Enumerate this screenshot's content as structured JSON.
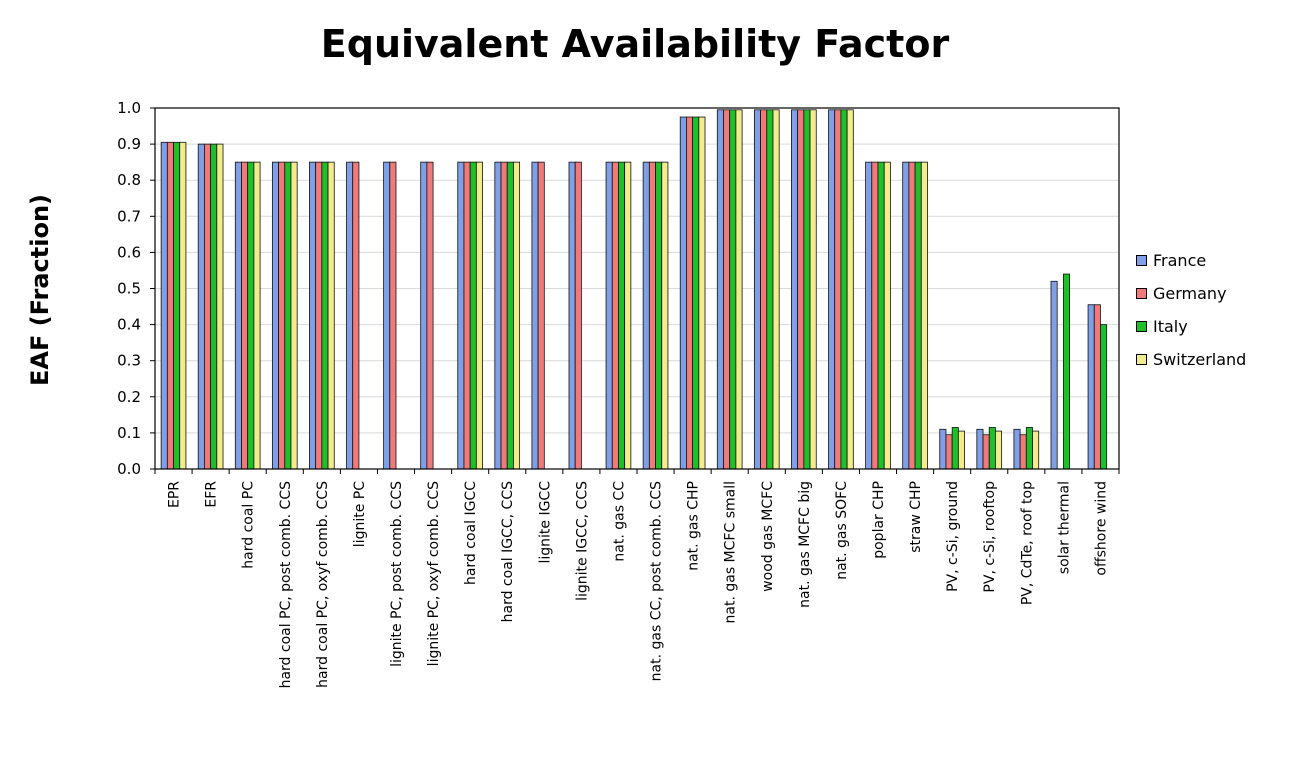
{
  "chart_data": {
    "type": "bar",
    "title": "Equivalent Availability Factor",
    "xlabel": "",
    "ylabel": "EAF (Fraction)",
    "ylim": [
      0,
      1.0
    ],
    "yticks": [
      "0.0",
      "0.1",
      "0.2",
      "0.3",
      "0.4",
      "0.5",
      "0.6",
      "0.7",
      "0.8",
      "0.9",
      "1.0"
    ],
    "grid": true,
    "legend_position": "right",
    "categories": [
      "EPR",
      "EFR",
      "hard coal PC",
      "hard coal PC, post comb. CCS",
      "hard coal PC, oxyf comb. CCS",
      "lignite PC",
      "lignite PC, post comb. CCS",
      "lignite PC, oxyf comb. CCS",
      "hard coal IGCC",
      "hard coal IGCC, CCS",
      "lignite IGCC",
      "lignite IGCC, CCS",
      "nat. gas CC",
      "nat. gas CC, post comb. CCS",
      "nat. gas CHP",
      "nat. gas MCFC small",
      "wood gas MCFC",
      "nat. gas MCFC big",
      "nat. gas SOFC",
      "poplar CHP",
      "straw CHP",
      "PV, c-Si, ground",
      "PV, c-Si, rooftop",
      "PV, CdTe, roof top",
      "solar thermal",
      "offshore wind"
    ],
    "series": [
      {
        "name": "France",
        "color": "#7f9fe6",
        "values": [
          0.905,
          0.9,
          0.85,
          0.85,
          0.85,
          0.85,
          0.85,
          0.85,
          0.85,
          0.85,
          0.85,
          0.85,
          0.85,
          0.85,
          0.975,
          0.995,
          0.995,
          0.995,
          0.995,
          0.85,
          0.85,
          0.11,
          0.11,
          0.11,
          0.52,
          0.455
        ]
      },
      {
        "name": "Germany",
        "color": "#f07a7a",
        "values": [
          0.905,
          0.9,
          0.85,
          0.85,
          0.85,
          0.85,
          0.85,
          0.85,
          0.85,
          0.85,
          0.85,
          0.85,
          0.85,
          0.85,
          0.975,
          0.995,
          0.995,
          0.995,
          0.995,
          0.85,
          0.85,
          0.095,
          0.095,
          0.095,
          null,
          0.455
        ]
      },
      {
        "name": "Italy",
        "color": "#1fbf2a",
        "values": [
          0.905,
          0.9,
          0.85,
          0.85,
          0.85,
          null,
          null,
          null,
          0.85,
          0.85,
          null,
          null,
          0.85,
          0.85,
          0.975,
          0.995,
          0.995,
          0.995,
          0.995,
          0.85,
          0.85,
          0.115,
          0.115,
          0.115,
          0.54,
          0.4
        ]
      },
      {
        "name": "Switzerland",
        "color": "#f2ec8c",
        "values": [
          0.905,
          0.9,
          0.85,
          0.85,
          0.85,
          null,
          null,
          null,
          0.85,
          0.85,
          null,
          null,
          0.85,
          0.85,
          0.975,
          0.995,
          0.995,
          0.995,
          0.995,
          0.85,
          0.85,
          0.105,
          0.105,
          0.105,
          null,
          null
        ]
      }
    ]
  }
}
